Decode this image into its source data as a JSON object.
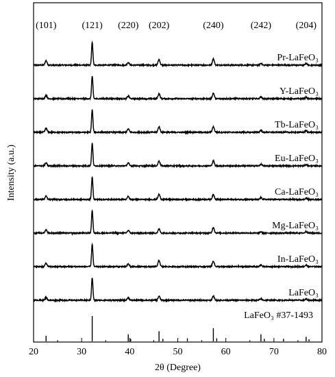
{
  "chart_data": {
    "type": "line",
    "title": "",
    "xlabel": "2θ (Degree)",
    "ylabel": "Intensity (a.u.)",
    "xlim": [
      20,
      80
    ],
    "x_ticks": [
      20,
      30,
      40,
      50,
      60,
      70,
      80
    ],
    "y_ticks_shown": false,
    "grid": false,
    "legend": "none (each pattern labeled above its trace at the right)",
    "peak_labels": [
      {
        "hkl": "(101)",
        "two_theta": 22.6
      },
      {
        "hkl": "(121)",
        "two_theta": 32.2
      },
      {
        "hkl": "(220)",
        "two_theta": 39.7
      },
      {
        "hkl": "(202)",
        "two_theta": 46.1
      },
      {
        "hkl": "(240)",
        "two_theta": 57.4
      },
      {
        "hkl": "(242)",
        "two_theta": 67.3
      },
      {
        "hkl": "(204)",
        "two_theta": 76.7
      }
    ],
    "series": [
      {
        "name": "Pr-LaFeO₃",
        "peaks": [
          [
            22.6,
            0.2
          ],
          [
            32.2,
            1.0
          ],
          [
            39.7,
            0.12
          ],
          [
            46.1,
            0.25
          ],
          [
            57.4,
            0.28
          ],
          [
            67.3,
            0.08
          ],
          [
            76.7,
            0.07
          ]
        ]
      },
      {
        "name": "Y-LaFeO₃",
        "peaks": [
          [
            22.6,
            0.15
          ],
          [
            32.2,
            1.0
          ],
          [
            39.7,
            0.12
          ],
          [
            46.1,
            0.22
          ],
          [
            57.4,
            0.25
          ],
          [
            67.3,
            0.08
          ],
          [
            76.7,
            0.06
          ]
        ]
      },
      {
        "name": "Tb-LaFeO₃",
        "peaks": [
          [
            22.6,
            0.18
          ],
          [
            32.2,
            1.0
          ],
          [
            39.7,
            0.15
          ],
          [
            46.1,
            0.25
          ],
          [
            57.4,
            0.25
          ],
          [
            67.3,
            0.09
          ],
          [
            76.7,
            0.07
          ]
        ]
      },
      {
        "name": "Eu-LaFeO₃",
        "peaks": [
          [
            22.6,
            0.13
          ],
          [
            32.2,
            1.0
          ],
          [
            39.7,
            0.13
          ],
          [
            46.1,
            0.22
          ],
          [
            57.4,
            0.22
          ],
          [
            67.3,
            0.07
          ],
          [
            76.7,
            0.06
          ]
        ]
      },
      {
        "name": "Ca-LaFeO₃",
        "peaks": [
          [
            22.6,
            0.15
          ],
          [
            32.2,
            1.0
          ],
          [
            39.7,
            0.13
          ],
          [
            46.1,
            0.23
          ],
          [
            57.4,
            0.22
          ],
          [
            67.3,
            0.08
          ],
          [
            76.7,
            0.06
          ]
        ]
      },
      {
        "name": "Mg-LaFeO₃",
        "peaks": [
          [
            22.6,
            0.15
          ],
          [
            32.2,
            1.0
          ],
          [
            39.7,
            0.12
          ],
          [
            46.1,
            0.18
          ],
          [
            57.4,
            0.25
          ],
          [
            67.3,
            0.06
          ],
          [
            76.7,
            0.07
          ]
        ]
      },
      {
        "name": "In-LaFeO₃",
        "peaks": [
          [
            22.6,
            0.15
          ],
          [
            32.2,
            1.0
          ],
          [
            39.7,
            0.12
          ],
          [
            46.1,
            0.28
          ],
          [
            57.4,
            0.25
          ],
          [
            67.3,
            0.08
          ],
          [
            76.7,
            0.07
          ]
        ]
      },
      {
        "name": "LaFeO₃",
        "peaks": [
          [
            22.6,
            0.12
          ],
          [
            32.2,
            1.0
          ],
          [
            39.7,
            0.12
          ],
          [
            46.1,
            0.18
          ],
          [
            57.4,
            0.18
          ],
          [
            67.3,
            0.06
          ],
          [
            76.7,
            0.05
          ]
        ]
      }
    ],
    "reference": {
      "name": "LaFeO₃ #37-1493",
      "lines": [
        [
          22.6,
          0.22
        ],
        [
          32.2,
          1.0
        ],
        [
          39.7,
          0.28
        ],
        [
          40.2,
          0.1
        ],
        [
          46.1,
          0.4
        ],
        [
          46.9,
          0.1
        ],
        [
          52.0,
          0.12
        ],
        [
          57.4,
          0.52
        ],
        [
          58.1,
          0.12
        ],
        [
          67.3,
          0.28
        ],
        [
          68.0,
          0.1
        ],
        [
          72.0,
          0.1
        ],
        [
          76.7,
          0.18
        ],
        [
          77.3,
          0.08
        ]
      ]
    }
  }
}
